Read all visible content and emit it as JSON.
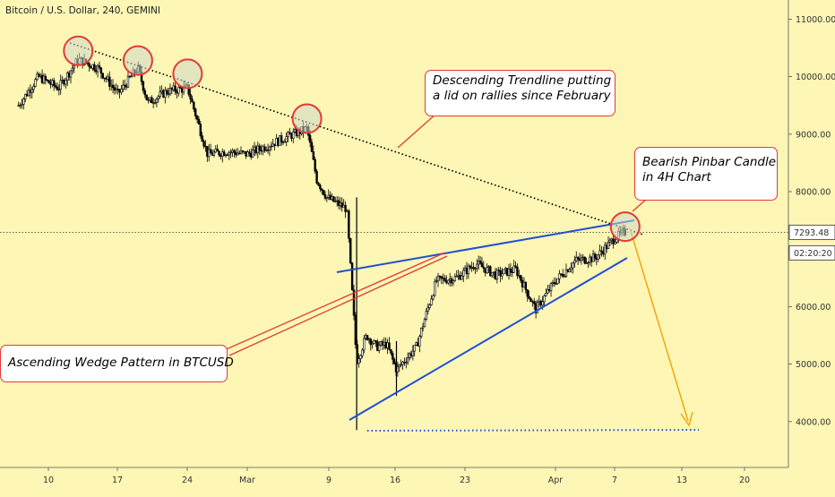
{
  "chart_title": "Bitcoin / U.S. Dollar, 240, GEMINI",
  "colors": {
    "background": "#fdf6b5",
    "candles": "#000000",
    "wedge_lines": "#1e4fd6",
    "trendline": "#000000",
    "highlight_circles": "#e53935",
    "arrow": "#f2a400",
    "target_line": "#1e4fd6",
    "callout_border": "#e53935"
  },
  "callouts": {
    "descending": [
      "Descending Trendline putting",
      "a lid on rallies since February"
    ],
    "pinbar": [
      "Bearish Pinbar Candle",
      "in 4H Chart"
    ],
    "wedge": [
      "Ascending Wedge Pattern in BTCUSD"
    ]
  },
  "price_tag": "7293.48",
  "time_tag": "02:20:20",
  "chart_data": {
    "type": "line",
    "title": "Bitcoin / U.S. Dollar, 240, GEMINI",
    "xlabel": "",
    "ylabel": "",
    "ylim": [
      3500,
      11500
    ],
    "x_ticks": [
      "10",
      "17",
      "24",
      "Mar",
      "9",
      "16",
      "23",
      "Apr",
      "7",
      "13",
      "20"
    ],
    "y_ticks": [
      "4000.00",
      "5000.00",
      "6000.00",
      "7000.00",
      "8000.00",
      "9000.00",
      "10000.00",
      "11000.00"
    ],
    "last_price": 7293.48,
    "series": [
      {
        "x": [
          "Feb 07",
          "Feb 09",
          "Feb 11",
          "Feb 13",
          "Feb 15",
          "Feb 17",
          "Feb 19",
          "Feb 20",
          "Feb 22",
          "Feb 24",
          "Feb 26",
          "Feb 28",
          "Mar 01",
          "Mar 03",
          "Mar 05",
          "Mar 07",
          "Mar 08",
          "Mar 09",
          "Mar 11",
          "Mar 12",
          "Mar 13",
          "Mar 14",
          "Mar 15",
          "Mar 16",
          "Mar 18",
          "Mar 20",
          "Mar 22",
          "Mar 24",
          "Mar 26",
          "Mar 28",
          "Mar 30",
          "Apr 01",
          "Apr 03",
          "Apr 05",
          "Apr 07",
          "Apr 08"
        ],
        "values": [
          9500,
          10000,
          9800,
          10300,
          10150,
          9700,
          10150,
          9550,
          9750,
          9800,
          8650,
          8700,
          8650,
          8800,
          8950,
          9100,
          8200,
          7900,
          7700,
          5050,
          5500,
          5300,
          5350,
          4900,
          5300,
          6450,
          6500,
          6750,
          6550,
          6650,
          5950,
          6450,
          6800,
          6850,
          7200,
          7293.48
        ]
      }
    ],
    "highlights": [
      "Feb 13",
      "Feb 19",
      "Feb 24",
      "Mar 07",
      "Apr 08"
    ],
    "annotations": [
      "Descending Trendline putting a lid on rallies since February",
      "Bearish Pinbar Candle in 4H Chart",
      "Ascending Wedge Pattern in BTCUSD"
    ],
    "grid": false,
    "legend": "none"
  }
}
